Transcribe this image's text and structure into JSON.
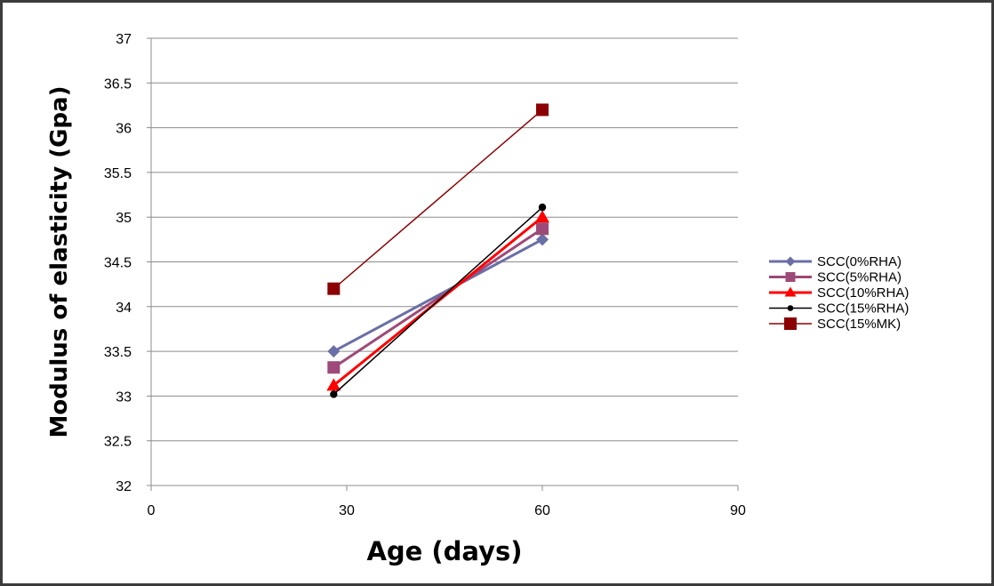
{
  "chart_data": {
    "type": "line",
    "title": "",
    "xlabel": "Age (days)",
    "ylabel": "Modulus of elasticity (Gpa)",
    "xlim": [
      0,
      90
    ],
    "ylim": [
      32,
      37
    ],
    "xticks": [
      0,
      30,
      60,
      90
    ],
    "yticks": [
      32,
      32.5,
      33,
      33.5,
      34,
      34.5,
      35,
      35.5,
      36,
      36.5,
      37
    ],
    "grid": "horizontal",
    "legend_position": "right",
    "series": [
      {
        "name": "SCC(0%RHA)",
        "x": [
          28,
          60
        ],
        "y": [
          33.5,
          34.75
        ],
        "color": "#6a6fa6",
        "marker": "diamond",
        "stroke": 3
      },
      {
        "name": "SCC(5%RHA)",
        "x": [
          28,
          60
        ],
        "y": [
          33.32,
          34.87
        ],
        "color": "#9e4a78",
        "marker": "square",
        "stroke": 3
      },
      {
        "name": "SCC(10%RHA)",
        "x": [
          28,
          60
        ],
        "y": [
          33.12,
          35.0
        ],
        "color": "#ff0000",
        "marker": "triangle",
        "stroke": 3
      },
      {
        "name": "SCC(15%RHA)",
        "x": [
          28,
          60
        ],
        "y": [
          33.02,
          35.11
        ],
        "color": "#000000",
        "marker": "circle",
        "stroke": 1.5
      },
      {
        "name": "SCC(15%MK)",
        "x": [
          28,
          60
        ],
        "y": [
          34.2,
          36.2
        ],
        "color": "#8b0000",
        "marker": "square",
        "stroke": 1.5
      }
    ]
  }
}
